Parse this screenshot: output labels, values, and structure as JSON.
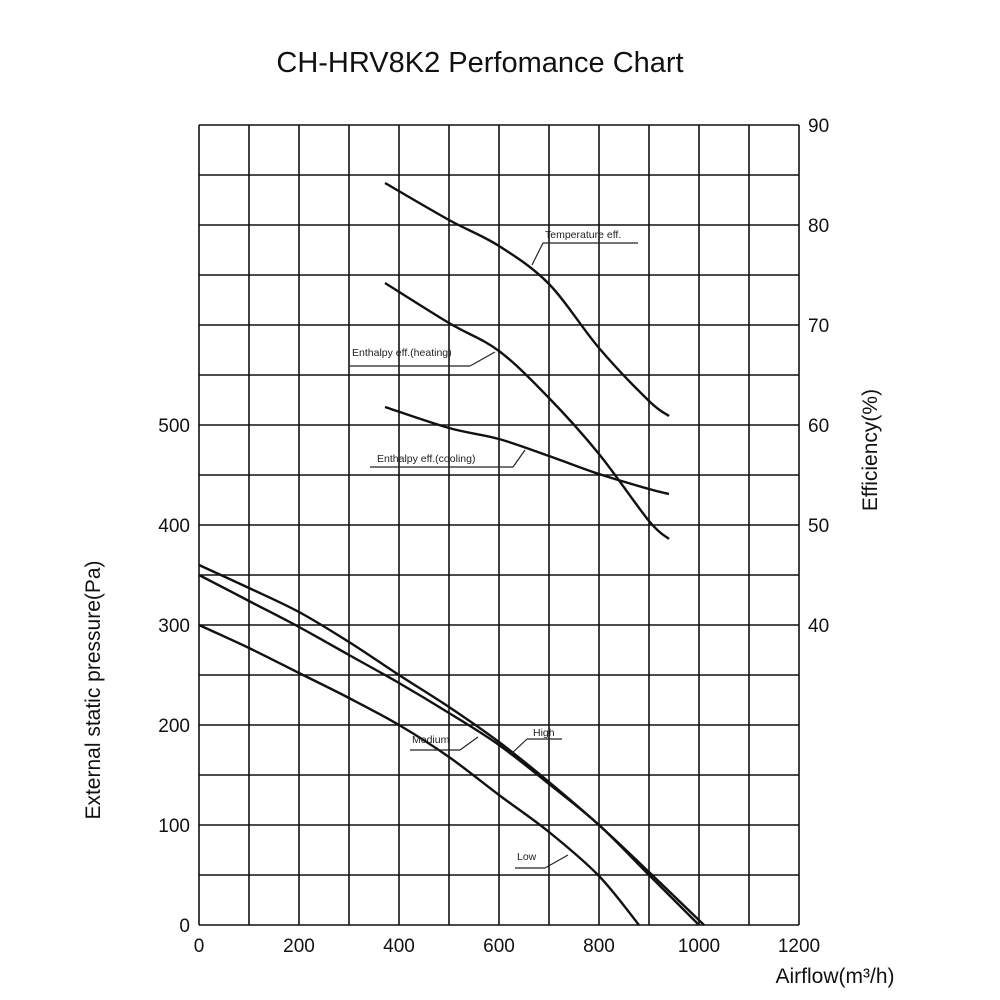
{
  "chart_data": {
    "type": "line",
    "title": "CH-HRV8K2  Perfomance Chart",
    "xlabel": "Airflow(m³/h)",
    "ylabel_left": "External static pressure(Pa)",
    "ylabel_right": "Efficiency(%)",
    "xlim": [
      0,
      1200
    ],
    "ylim_left": [
      0,
      800
    ],
    "ylim_right": [
      10,
      90
    ],
    "x_ticks": [
      "0",
      "200",
      "400",
      "600",
      "800",
      "1000",
      "1200"
    ],
    "y_ticks_left": [
      "0",
      "100",
      "200",
      "300",
      "400",
      "500"
    ],
    "y_ticks_right": [
      "40",
      "50",
      "60",
      "70",
      "80",
      "90"
    ],
    "grid": true,
    "line_color": "#111111",
    "series": [
      {
        "name": "High",
        "axis": "left",
        "x": [
          0,
          100,
          200,
          300,
          400,
          500,
          600,
          700,
          800,
          900,
          1010
        ],
        "y": [
          360,
          337,
          313,
          283,
          250,
          218,
          183,
          143,
          100,
          53,
          0
        ]
      },
      {
        "name": "Medium",
        "axis": "left",
        "x": [
          0,
          100,
          200,
          300,
          400,
          500,
          600,
          700,
          800,
          900,
          1000
        ],
        "y": [
          350,
          324,
          298,
          270,
          242,
          212,
          180,
          141,
          100,
          50,
          0
        ]
      },
      {
        "name": "Low",
        "axis": "left",
        "x": [
          0,
          100,
          200,
          300,
          400,
          500,
          600,
          700,
          800,
          880
        ],
        "y": [
          300,
          277,
          252,
          227,
          200,
          168,
          130,
          93,
          49,
          0
        ]
      },
      {
        "name": "Temperature eff.",
        "axis": "right",
        "x": [
          372,
          500,
          600,
          700,
          800,
          900,
          940
        ],
        "y": [
          84.2,
          80.5,
          77.9,
          74.1,
          67.7,
          62.4,
          60.9
        ]
      },
      {
        "name": "Enthalpy eff.(heating)",
        "axis": "right",
        "x": [
          372,
          500,
          600,
          700,
          800,
          900,
          940
        ],
        "y": [
          74.2,
          70.2,
          67.4,
          62.7,
          57.1,
          50.4,
          48.6
        ]
      },
      {
        "name": "Enthalpy eff.(cooling)",
        "axis": "right",
        "x": [
          372,
          500,
          600,
          700,
          800,
          900,
          940
        ],
        "y": [
          61.8,
          59.7,
          58.6,
          56.9,
          55.1,
          53.6,
          53.1
        ]
      }
    ]
  }
}
